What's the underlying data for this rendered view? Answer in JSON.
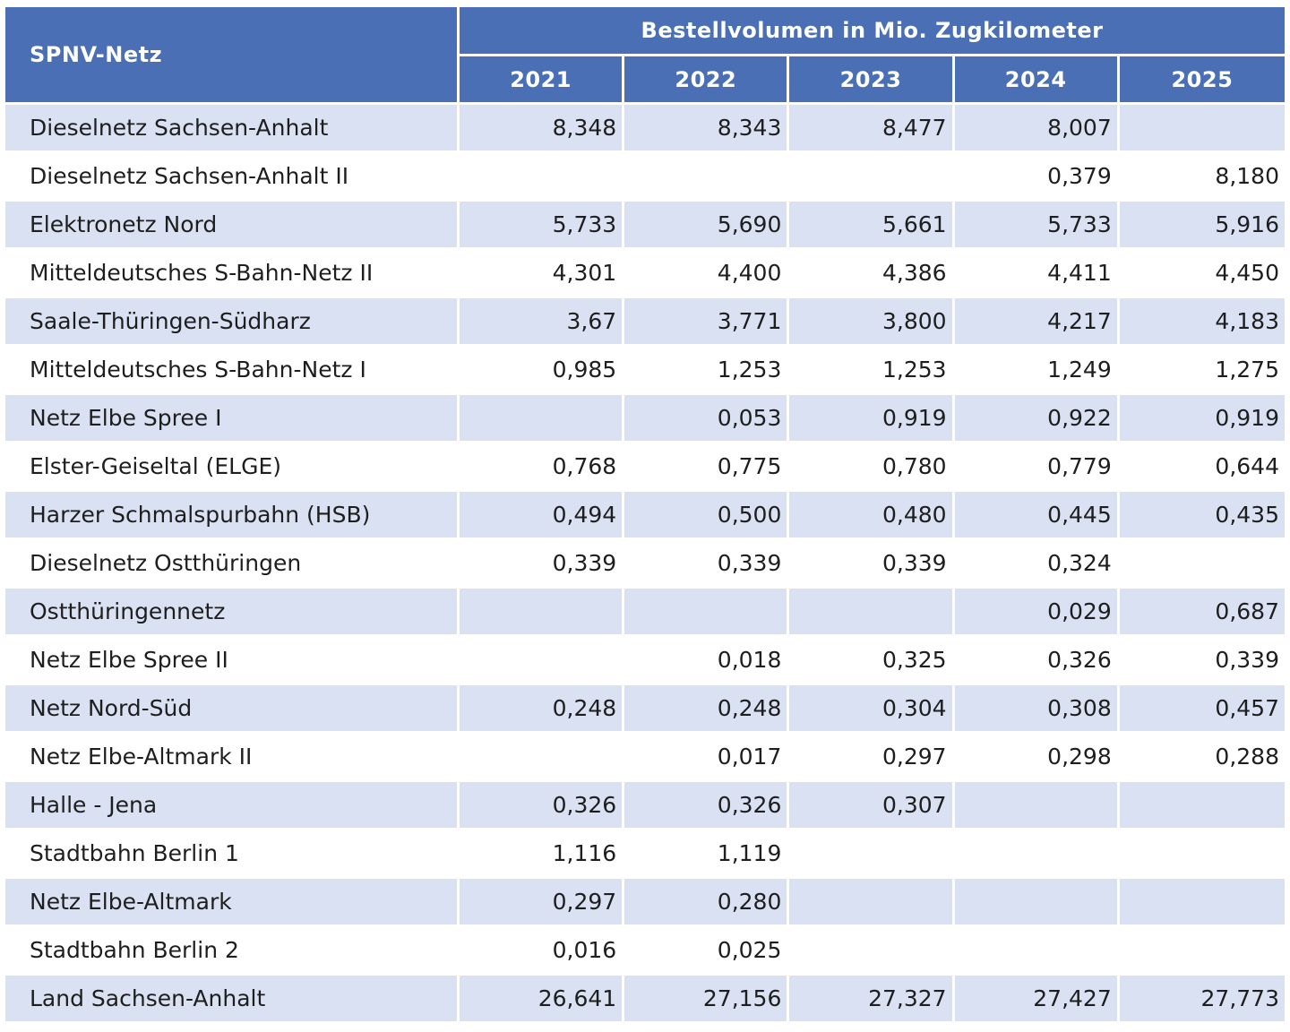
{
  "table": {
    "header": {
      "network_label": "SPNV-Netz",
      "group_label": "Bestellvolumen in Mio. Zugkilometer",
      "years": [
        "2021",
        "2022",
        "2023",
        "2024",
        "2025"
      ]
    },
    "rows": [
      {
        "name": "Dieselnetz Sachsen-Anhalt",
        "values": [
          "8,348",
          "8,343",
          "8,477",
          "8,007",
          ""
        ]
      },
      {
        "name": "Dieselnetz Sachsen-Anhalt II",
        "values": [
          "",
          "",
          "",
          "0,379",
          "8,180"
        ]
      },
      {
        "name": "Elektronetz Nord",
        "values": [
          "5,733",
          "5,690",
          "5,661",
          "5,733",
          "5,916"
        ]
      },
      {
        "name": "Mitteldeutsches S-Bahn-Netz II",
        "values": [
          "4,301",
          "4,400",
          "4,386",
          "4,411",
          "4,450"
        ]
      },
      {
        "name": "Saale-Thüringen-Südharz",
        "values": [
          "3,67",
          "3,771",
          "3,800",
          "4,217",
          "4,183"
        ]
      },
      {
        "name": "Mitteldeutsches S-Bahn-Netz I",
        "values": [
          "0,985",
          "1,253",
          "1,253",
          "1,249",
          "1,275"
        ]
      },
      {
        "name": "Netz Elbe Spree I",
        "values": [
          "",
          "0,053",
          "0,919",
          "0,922",
          "0,919"
        ]
      },
      {
        "name": "Elster-Geiseltal (ELGE)",
        "values": [
          "0,768",
          "0,775",
          "0,780",
          "0,779",
          "0,644"
        ]
      },
      {
        "name": "Harzer Schmalspurbahn (HSB)",
        "values": [
          "0,494",
          "0,500",
          "0,480",
          "0,445",
          "0,435"
        ]
      },
      {
        "name": "Dieselnetz Ostthüringen",
        "values": [
          "0,339",
          "0,339",
          "0,339",
          "0,324",
          ""
        ]
      },
      {
        "name": "Ostthüringennetz",
        "values": [
          "",
          "",
          "",
          "0,029",
          "0,687"
        ]
      },
      {
        "name": "Netz Elbe Spree II",
        "values": [
          "",
          "0,018",
          "0,325",
          "0,326",
          "0,339"
        ]
      },
      {
        "name": "Netz Nord-Süd",
        "values": [
          "0,248",
          "0,248",
          "0,304",
          "0,308",
          "0,457"
        ]
      },
      {
        "name": "Netz Elbe-Altmark II",
        "values": [
          "",
          "0,017",
          "0,297",
          "0,298",
          "0,288"
        ]
      },
      {
        "name": "Halle - Jena",
        "values": [
          "0,326",
          "0,326",
          "0,307",
          "",
          ""
        ]
      },
      {
        "name": "Stadtbahn Berlin 1",
        "values": [
          "1,116",
          "1,119",
          "",
          "",
          ""
        ]
      },
      {
        "name": "Netz Elbe-Altmark",
        "values": [
          "0,297",
          "0,280",
          "",
          "",
          ""
        ]
      },
      {
        "name": "Stadtbahn Berlin 2",
        "values": [
          "0,016",
          "0,025",
          "",
          "",
          ""
        ]
      },
      {
        "name": "Land Sachsen-Anhalt",
        "values": [
          "26,641",
          "27,156",
          "27,327",
          "27,427",
          "27,773"
        ]
      }
    ]
  },
  "colors": {
    "header_bg": "#4a6fb5",
    "header_text": "#ffffff",
    "stripe_bg": "#d9e1f2",
    "plain_bg": "#ffffff"
  }
}
